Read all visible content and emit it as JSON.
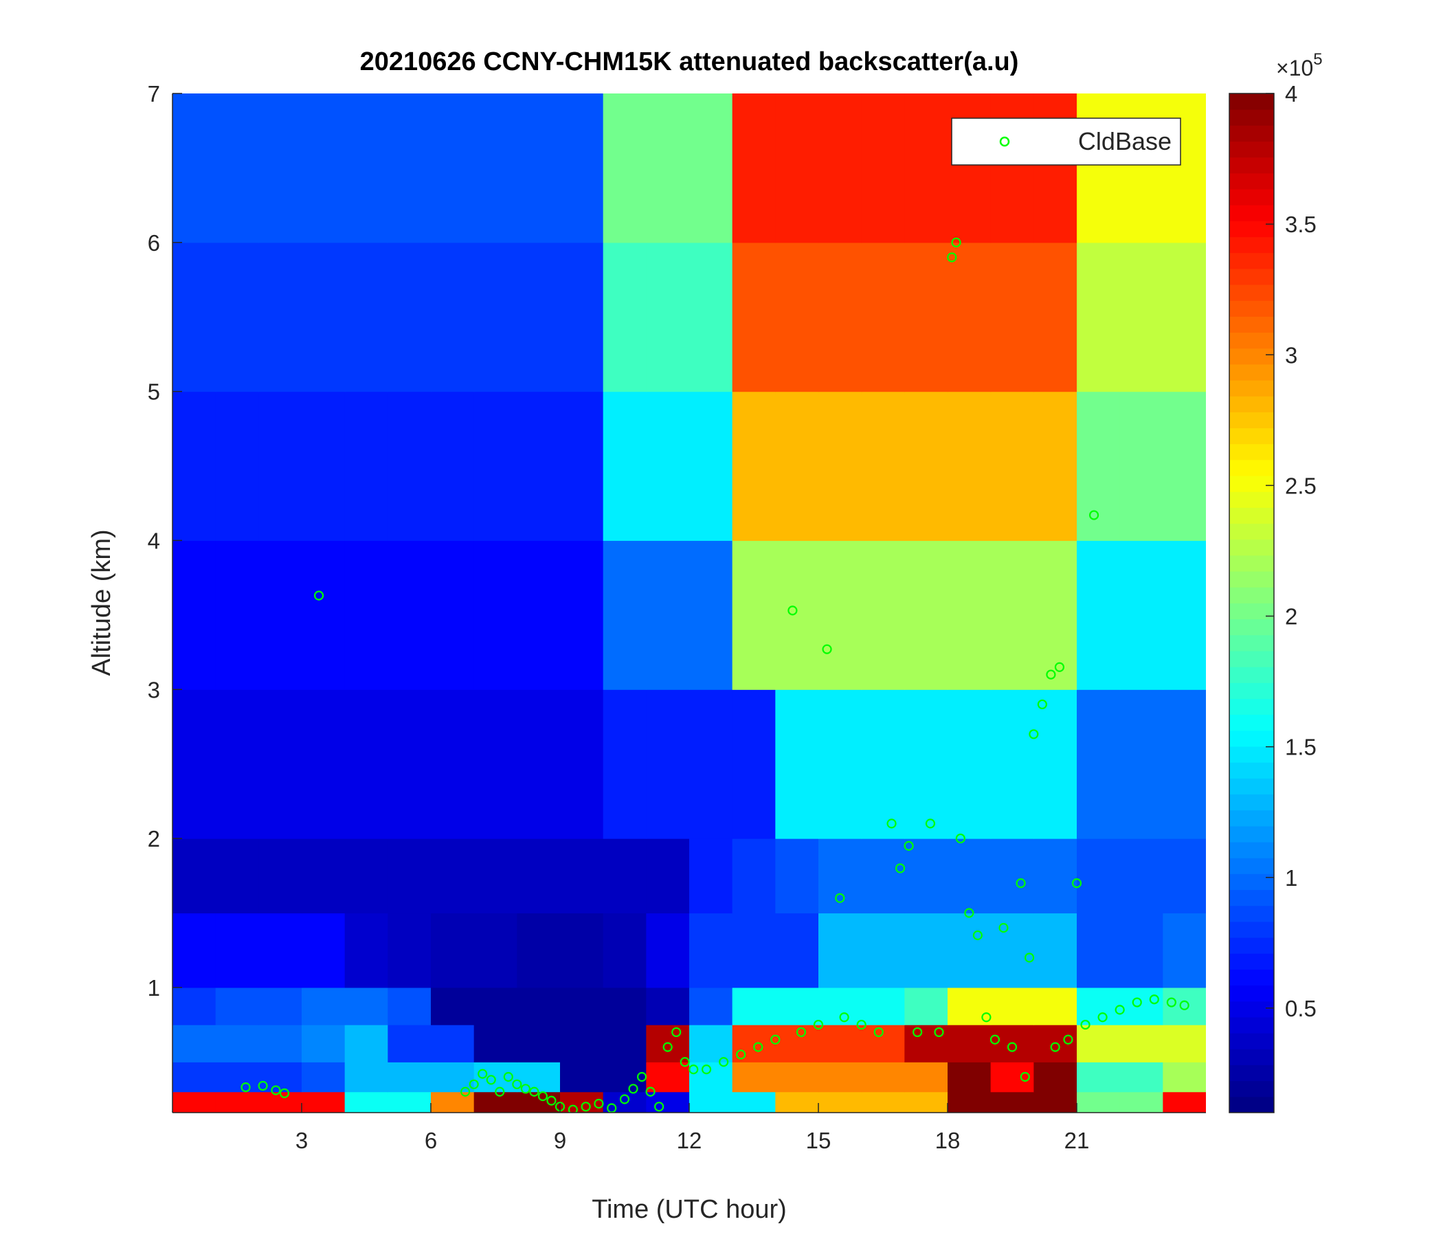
{
  "chart_data": {
    "type": "heatmap",
    "title": "20210626 CCNY-CHM15K attenuated backscatter(a.u)",
    "x_label": "Time (UTC hour)",
    "y_label": "Altitude (km)",
    "xlim": [
      0,
      24
    ],
    "ylim": [
      0.16,
      7
    ],
    "xticks": [
      3,
      6,
      9,
      12,
      15,
      18,
      21
    ],
    "yticks": [
      1,
      2,
      3,
      4,
      5,
      6,
      7
    ],
    "colormap": "jet",
    "clim": [
      0.1,
      4
    ],
    "colorbar_ticks": [
      0.5,
      1,
      1.5,
      2,
      2.5,
      3,
      3.5,
      4
    ],
    "colorbar_scale_base": "×10",
    "colorbar_scale_exponent": "5",
    "x_edges": [
      0,
      1,
      2,
      3,
      4,
      5,
      6,
      7,
      8,
      9,
      10,
      11,
      12,
      13,
      14,
      15,
      16,
      17,
      18,
      19,
      20,
      21,
      22,
      23,
      24
    ],
    "y_edges": [
      0.16,
      0.3,
      0.5,
      0.75,
      1,
      1.5,
      2,
      3,
      4,
      5,
      6,
      7
    ],
    "z": [
      [
        3.5,
        3.5,
        3.5,
        3.5,
        1.6,
        1.6,
        3,
        4,
        4,
        3.8,
        0.4,
        0.5,
        1.5,
        1.5,
        2.8,
        2.8,
        2.8,
        2.8,
        4,
        4,
        4,
        2,
        2,
        3.5
      ],
      [
        0.8,
        0.8,
        0.8,
        0.9,
        1.3,
        1.3,
        1.3,
        1.4,
        1.4,
        0.2,
        0.2,
        3.5,
        1.5,
        3,
        3,
        3,
        3,
        3,
        4,
        3.5,
        4,
        1.8,
        1.8,
        2.2
      ],
      [
        1,
        1,
        1,
        1.1,
        1.3,
        0.8,
        0.8,
        0.2,
        0.2,
        0.2,
        0.2,
        3.8,
        1.4,
        3.3,
        3.3,
        3.3,
        3.3,
        3.8,
        3.8,
        3.8,
        3.8,
        2.4,
        2.4,
        2.4
      ],
      [
        0.8,
        0.9,
        0.9,
        1,
        1,
        0.9,
        0.2,
        0.2,
        0.2,
        0.2,
        0.2,
        0.3,
        0.9,
        1.6,
        1.6,
        1.6,
        1.6,
        1.8,
        2.5,
        2.5,
        2.5,
        1.6,
        1.6,
        1.8
      ],
      [
        0.6,
        0.6,
        0.6,
        0.6,
        0.4,
        0.35,
        0.3,
        0.3,
        0.25,
        0.25,
        0.3,
        0.5,
        0.8,
        0.8,
        0.8,
        1.3,
        1.3,
        1.3,
        1.3,
        1.3,
        1.3,
        0.9,
        0.9,
        1
      ],
      [
        0.35,
        0.35,
        0.35,
        0.35,
        0.35,
        0.35,
        0.35,
        0.35,
        0.35,
        0.35,
        0.35,
        0.35,
        0.7,
        0.8,
        0.9,
        1,
        1,
        1,
        1,
        1,
        1,
        0.9,
        0.9,
        0.9
      ],
      [
        0.5,
        0.5,
        0.5,
        0.5,
        0.5,
        0.5,
        0.5,
        0.5,
        0.5,
        0.5,
        0.7,
        0.7,
        0.7,
        0.7,
        1.5,
        1.5,
        1.5,
        1.5,
        1.5,
        1.5,
        1.5,
        1,
        1,
        1
      ],
      [
        0.6,
        0.6,
        0.6,
        0.6,
        0.6,
        0.6,
        0.6,
        0.6,
        0.6,
        0.6,
        1,
        1,
        1,
        2.2,
        2.2,
        2.2,
        2.2,
        2.2,
        2.2,
        2.2,
        2.2,
        1.5,
        1.5,
        1.5
      ],
      [
        0.7,
        0.7,
        0.7,
        0.7,
        0.7,
        0.7,
        0.7,
        0.7,
        0.7,
        0.7,
        1.5,
        1.5,
        1.5,
        2.8,
        2.8,
        2.8,
        2.8,
        2.8,
        2.8,
        2.8,
        2.8,
        2,
        2,
        2
      ],
      [
        0.8,
        0.8,
        0.8,
        0.8,
        0.8,
        0.8,
        0.8,
        0.8,
        0.8,
        0.8,
        1.8,
        1.8,
        1.8,
        3.2,
        3.2,
        3.2,
        3.2,
        3.2,
        3.2,
        3.2,
        3.2,
        2.3,
        2.3,
        2.3
      ],
      [
        0.9,
        0.9,
        0.9,
        0.9,
        0.9,
        0.9,
        0.9,
        0.9,
        0.9,
        0.9,
        2,
        2,
        2,
        3.4,
        3.4,
        3.4,
        3.4,
        3.4,
        3.4,
        3.4,
        3.4,
        2.5,
        2.5,
        2.5
      ]
    ],
    "series": [
      {
        "name": "CldBase",
        "color": "#00ff00",
        "x": [
          1.7,
          2.1,
          2.4,
          2.6,
          3.4,
          6.8,
          7.0,
          7.2,
          7.4,
          7.6,
          7.8,
          8.0,
          8.2,
          8.4,
          8.6,
          8.8,
          9.0,
          9.3,
          9.6,
          9.9,
          10.2,
          10.5,
          10.7,
          10.9,
          11.1,
          11.3,
          11.5,
          11.7,
          11.9,
          12.1,
          12.4,
          12.8,
          13.2,
          13.6,
          14.0,
          14.4,
          14.6,
          15.0,
          15.2,
          15.5,
          15.6,
          16.0,
          16.4,
          16.7,
          16.9,
          17.1,
          17.3,
          17.6,
          17.8,
          18.1,
          18.2,
          18.3,
          18.5,
          18.7,
          18.9,
          19.1,
          19.3,
          19.5,
          19.7,
          19.8,
          19.9,
          20.0,
          20.2,
          20.4,
          20.5,
          20.6,
          20.8,
          21.0,
          21.2,
          21.4,
          21.6,
          22.0,
          22.4,
          22.8,
          23.2,
          23.5
        ],
        "values": [
          0.33,
          0.34,
          0.31,
          0.29,
          3.63,
          0.3,
          0.35,
          0.42,
          0.38,
          0.3,
          0.4,
          0.35,
          0.32,
          0.3,
          0.27,
          0.24,
          0.2,
          0.18,
          0.2,
          0.22,
          0.19,
          0.25,
          0.32,
          0.4,
          0.3,
          0.2,
          0.6,
          0.7,
          0.5,
          0.45,
          0.45,
          0.5,
          0.55,
          0.6,
          0.65,
          3.53,
          0.7,
          0.75,
          3.27,
          1.6,
          0.8,
          0.75,
          0.7,
          2.1,
          1.8,
          1.95,
          0.7,
          2.1,
          0.7,
          5.9,
          6.0,
          2.0,
          1.5,
          1.35,
          0.8,
          0.65,
          1.4,
          0.6,
          1.7,
          0.4,
          1.2,
          2.7,
          2.9,
          3.1,
          0.6,
          3.15,
          0.65,
          1.7,
          0.75,
          4.17,
          0.8,
          0.85,
          0.9,
          0.92,
          0.9,
          0.88
        ]
      }
    ],
    "legend": "northeast"
  }
}
